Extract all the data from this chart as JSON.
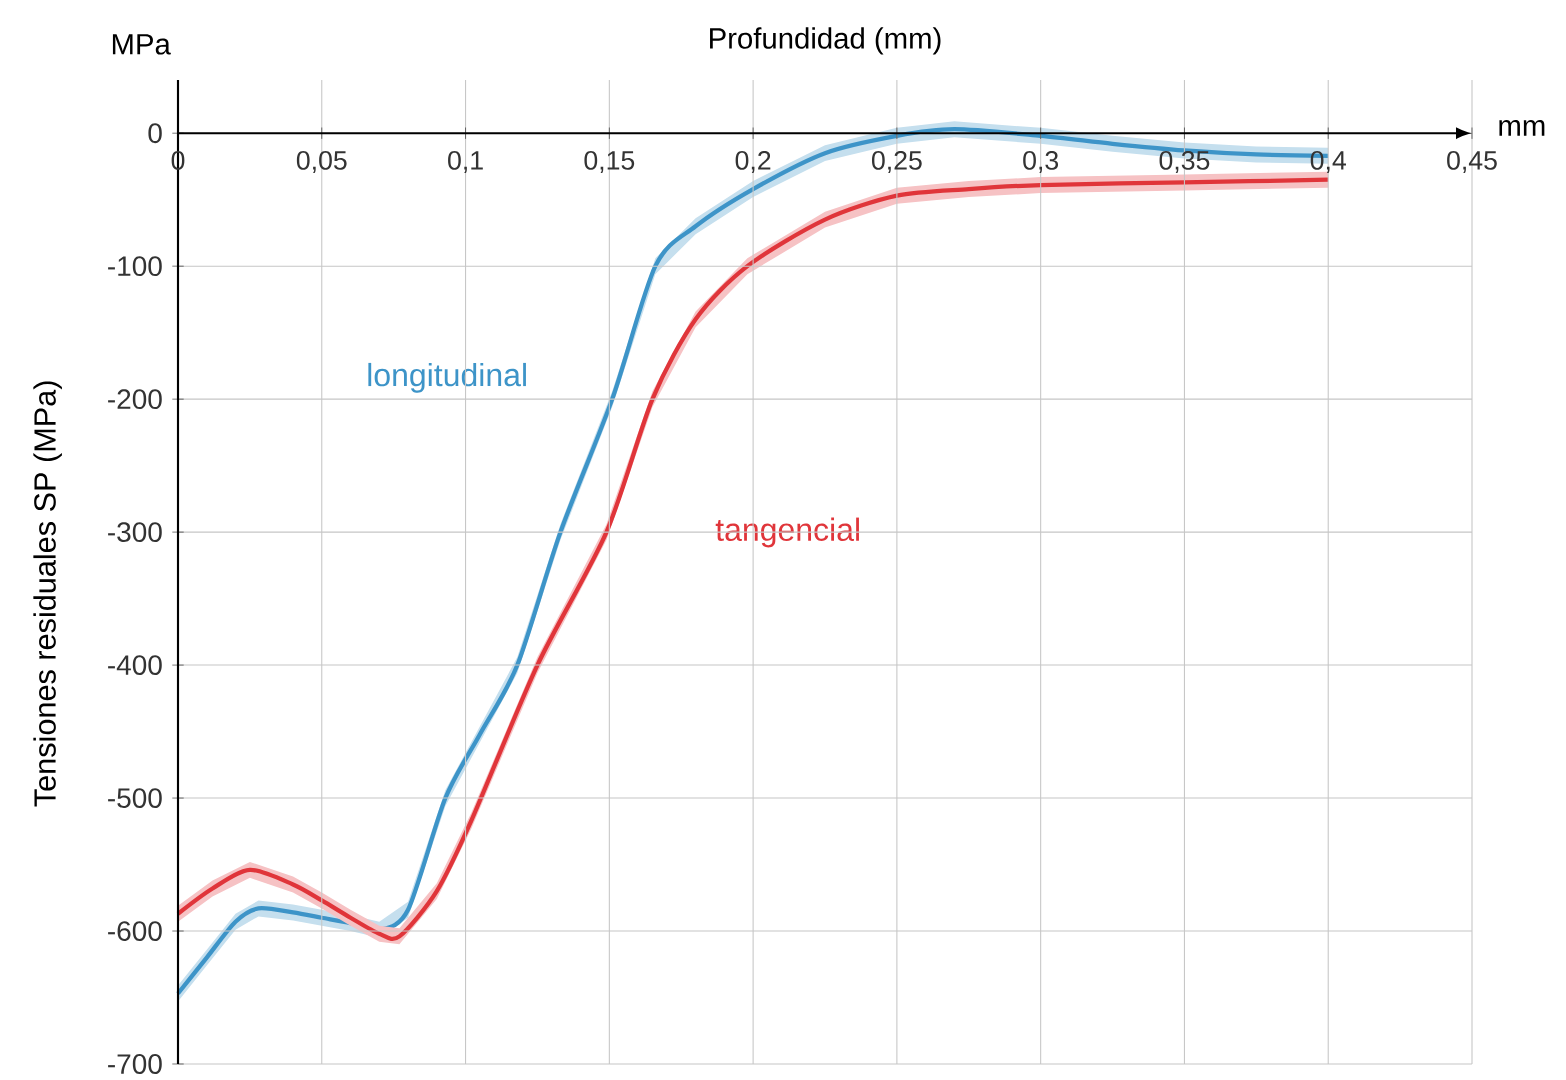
{
  "chart_data": {
    "type": "line",
    "xlabel": "Profundidad (mm)",
    "ylabel": "Tensiones residuales SP (MPa)",
    "annotations": [
      "MPa",
      "mm"
    ],
    "xlim": [
      0,
      0.45
    ],
    "ylim": [
      -700,
      40
    ],
    "xticks": [
      0,
      {
        "value": 0.05,
        "label": "0,05"
      },
      {
        "value": 0.1,
        "label": "0,1"
      },
      {
        "value": 0.15,
        "label": "0,15"
      },
      {
        "value": 0.2,
        "label": "0,2"
      },
      {
        "value": 0.25,
        "label": "0,25"
      },
      {
        "value": 0.3,
        "label": "0,3"
      },
      {
        "value": 0.35,
        "label": "0,35"
      },
      {
        "value": 0.4,
        "label": "0,4"
      },
      {
        "value": 0.45,
        "label": "0,45"
      }
    ],
    "yticks": [
      -700,
      -600,
      -500,
      -400,
      -300,
      -200,
      -100,
      0
    ],
    "grid": true,
    "series": [
      {
        "name": "longitudinal",
        "color": "#3d94c8",
        "x": [
          0,
          0.01,
          0.02,
          0.028,
          0.04,
          0.05,
          0.06,
          0.07,
          0.08,
          0.093,
          0.105,
          0.118,
          0.133,
          0.151,
          0.166,
          0.18,
          0.2,
          0.225,
          0.25,
          0.27,
          0.3,
          0.325,
          0.35,
          0.375,
          0.4
        ],
        "values": [
          -647,
          -620,
          -593,
          -583,
          -586,
          -590,
          -594,
          -599,
          -584,
          -500,
          -452,
          -400,
          -300,
          -200,
          -100,
          -70,
          -42,
          -15,
          -2,
          3,
          -2,
          -8,
          -13,
          -16,
          -17
        ],
        "lower": [
          -653,
          -626,
          -599,
          -589,
          -592,
          -596,
          -600,
          -605,
          -590,
          -506,
          -458,
          -406,
          -306,
          -206,
          -106,
          -76,
          -48,
          -21,
          -8,
          -3,
          -8,
          -14,
          -19,
          -22,
          -23
        ],
        "upper": [
          -641,
          -614,
          -587,
          -577,
          -580,
          -584,
          -588,
          -593,
          -578,
          -494,
          -446,
          -394,
          -294,
          -194,
          -94,
          -64,
          -36,
          -9,
          4,
          9,
          4,
          -2,
          -7,
          -10,
          -11
        ]
      },
      {
        "name": "tangencial",
        "color": "#e0353a",
        "x": [
          0,
          0.012,
          0.025,
          0.04,
          0.05,
          0.06,
          0.07,
          0.077,
          0.09,
          0.102,
          0.125,
          0.149,
          0.165,
          0.18,
          0.198,
          0.225,
          0.25,
          0.275,
          0.3,
          0.35,
          0.4
        ],
        "values": [
          -587,
          -568,
          -554,
          -565,
          -577,
          -590,
          -602,
          -604,
          -570,
          -517,
          -400,
          -300,
          -200,
          -140,
          -100,
          -65,
          -47,
          -42,
          -39,
          -37,
          -35
        ],
        "lower": [
          -593,
          -574,
          -560,
          -571,
          -583,
          -596,
          -608,
          -610,
          -576,
          -523,
          -406,
          -306,
          -206,
          -146,
          -106,
          -71,
          -53,
          -48,
          -45,
          -43,
          -41
        ],
        "upper": [
          -581,
          -562,
          -548,
          -559,
          -571,
          -584,
          -596,
          -598,
          -564,
          -511,
          -394,
          -294,
          -194,
          -134,
          -94,
          -59,
          -41,
          -36,
          -33,
          -31,
          -29
        ]
      }
    ]
  }
}
